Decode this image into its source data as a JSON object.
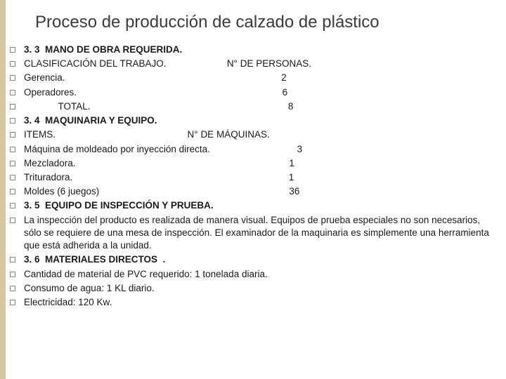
{
  "title": "Proceso de producción de calzado de plástico",
  "colors": {
    "sidebar": "#d9c5a0",
    "background": "#ffffff",
    "title_color": "#3b3b3b",
    "text_color": "#1a1a1a"
  },
  "typography": {
    "title_fontsize": 24,
    "body_fontsize": 13.5,
    "font_family": "Arial"
  },
  "lines": {
    "s33": "3. 3  MANO DE OBRA REQUERIDA.",
    "clasif": "CLASIFICACIÓN DEL TRABAJO.                       N° DE PERSONAS.",
    "gerencia": "Gerencia.                                                                                  2",
    "operadores": "Operadores.                                                                              6",
    "total": "             TOTAL.                                                                           8",
    "s34": "3. 4  MAQUINARIA Y EQUIPO.",
    "items": "ITEMS.                                                  N° DE MÁQUINAS.",
    "maq_moldeado": "Máquina de moldeado por inyección directa.                                 3",
    "mezcladora": "Mezcladora.                                                                                 1",
    "trituradora": "Trituradora.                                                                                  1",
    "moldes": "Moldes (6 juegos)                                                                        36",
    "s35": "3. 5  EQUIPO DE INSPECCIÓN Y PRUEBA.",
    "inspeccion": "La inspección del producto es realizada de manera visual. Equipos de prueba especiales no son necesarios, sólo se requiere de una mesa de inspección. El examinador de la maquinaria es simplemente una herramienta que está adherida a la unidad.",
    "s36": "3. 6  MATERIALES DIRECTOS  .",
    "pvc": "Cantidad de material de PVC requerido: 1 tonelada diaria.",
    "agua": "Consumo de agua: 1 KL diario.",
    "elec": "Electricidad: 120 Kw."
  }
}
